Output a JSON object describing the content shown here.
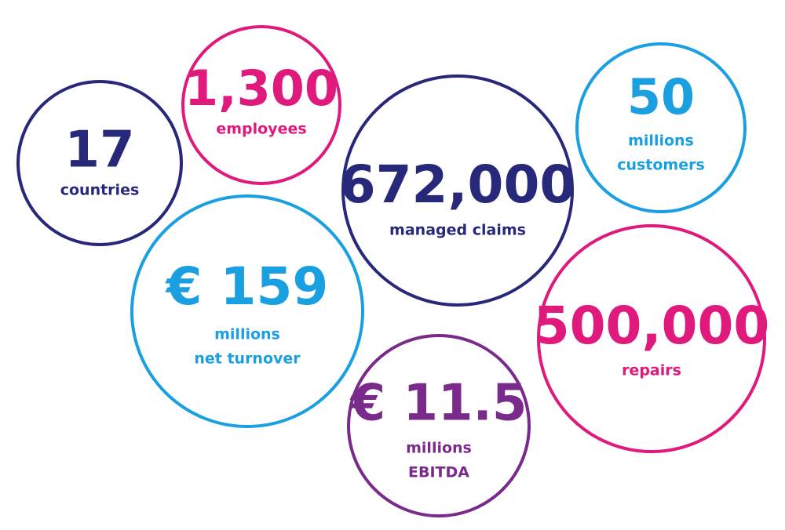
{
  "stats": [
    {
      "value": "17",
      "lines": [
        "countries"
      ],
      "color": "#28287a"
    },
    {
      "value": "1,300",
      "lines": [
        "employees"
      ],
      "color": "#e0197d"
    },
    {
      "value": "672,000",
      "lines": [
        "managed claims"
      ],
      "color": "#28287a"
    },
    {
      "value": "50",
      "lines": [
        "millions",
        "customers"
      ],
      "color": "#1a9fe0"
    },
    {
      "value": "€ 159",
      "lines": [
        "millions",
        "net turnover"
      ],
      "color": "#1a9fe0"
    },
    {
      "value": "500,000",
      "lines": [
        "repairs"
      ],
      "color": "#e0197d"
    },
    {
      "value": "€ 11.5",
      "lines": [
        "millions",
        "EBITDA"
      ],
      "color": "#7a2a8a"
    }
  ]
}
